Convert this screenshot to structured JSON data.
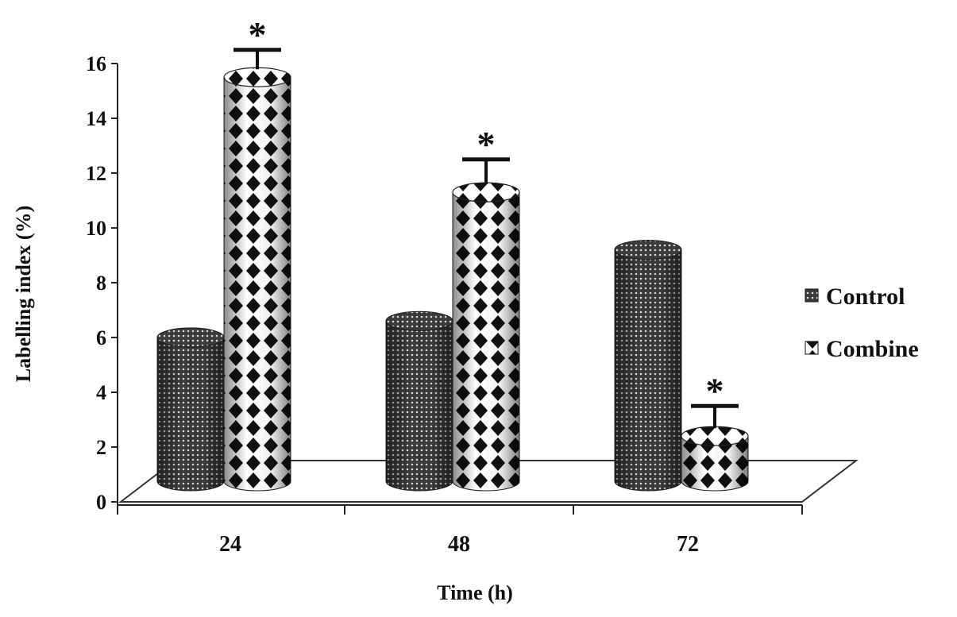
{
  "chart_data": {
    "type": "bar",
    "style": "3d-cylinder",
    "title": "",
    "xlabel": "Time (h)",
    "ylabel": "Labelling index (%)",
    "ylim": [
      0,
      16
    ],
    "yticks": [
      "0",
      "2",
      "4",
      "6",
      "8",
      "10",
      "12",
      "14",
      "16"
    ],
    "categories": [
      "24",
      "48",
      "72"
    ],
    "series": [
      {
        "name": "Control",
        "pattern": "fine-dots",
        "values": [
          6.0,
          6.6,
          9.2
        ],
        "errors": [
          null,
          null,
          null
        ],
        "significance": [
          "",
          "",
          ""
        ]
      },
      {
        "name": "Combine",
        "pattern": "diamond-check",
        "values": [
          15.5,
          11.3,
          2.4
        ],
        "errors": [
          1.0,
          1.2,
          1.1
        ],
        "significance": [
          "*",
          "*",
          "*"
        ]
      }
    ],
    "legend_position": "right",
    "grid": false,
    "colors": {
      "dark": "#111111",
      "light": "#ffffff",
      "axis": "#222222"
    }
  }
}
